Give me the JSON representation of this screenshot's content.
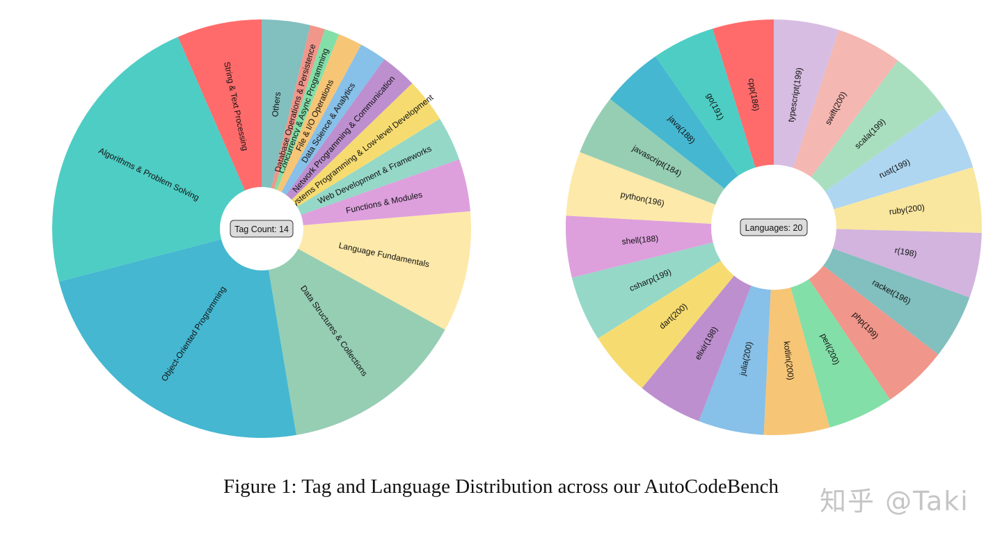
{
  "caption": "Figure 1: Tag and Language Distribution across our AutoCodeBench",
  "watermark": "知乎 @Taki",
  "chart_data": [
    {
      "type": "pie",
      "variant": "donut",
      "center_label": "Tag Count: 14",
      "slices": [
        {
          "label": "Others",
          "value": 3.6,
          "color": "#82BFBF"
        },
        {
          "label": "Database Operations & Persistence",
          "value": 1.1,
          "color": "#F1968A"
        },
        {
          "label": "Concurrency & Async Programming",
          "value": 1.1,
          "color": "#82DFA8"
        },
        {
          "label": "File & I/O Operations",
          "value": 1.8,
          "color": "#F7C576"
        },
        {
          "label": "Data Science & Analytics",
          "value": 2.0,
          "color": "#87C0E8"
        },
        {
          "label": "Network Programming & Communication",
          "value": 2.7,
          "color": "#BD8FCF"
        },
        {
          "label": "Systems Programming & Low-level Development",
          "value": 3.3,
          "color": "#F6DC70"
        },
        {
          "label": "Web Development & Frameworks",
          "value": 3.3,
          "color": "#95D8C8"
        },
        {
          "label": "Functions & Modules",
          "value": 3.9,
          "color": "#DDA0DD"
        },
        {
          "label": "Language Fundamentals",
          "value": 9.0,
          "color": "#FDE9A9"
        },
        {
          "label": "Data Structures & Collections",
          "value": 13.8,
          "color": "#96CEB4"
        },
        {
          "label": "Object-Oriented Programming",
          "value": 22.7,
          "color": "#45B7D1"
        },
        {
          "label": "Algorithms & Problem Solving",
          "value": 21.7,
          "color": "#4ECDC4"
        },
        {
          "label": "String & Text Processing",
          "value": 6.3,
          "color": "#FF6B6B"
        }
      ]
    },
    {
      "type": "pie",
      "variant": "donut",
      "center_label": "Languages: 20",
      "slices": [
        {
          "label": "typescript(199)",
          "value": 199,
          "color": "#D7BDE2"
        },
        {
          "label": "swift(200)",
          "value": 200,
          "color": "#F5B7B1"
        },
        {
          "label": "scala(199)",
          "value": 199,
          "color": "#A9DFBF"
        },
        {
          "label": "rust(199)",
          "value": 199,
          "color": "#AED6F1"
        },
        {
          "label": "ruby(200)",
          "value": 200,
          "color": "#F9E79F"
        },
        {
          "label": "r(198)",
          "value": 198,
          "color": "#D2B4DE"
        },
        {
          "label": "racket(196)",
          "value": 196,
          "color": "#82BFBF"
        },
        {
          "label": "php(199)",
          "value": 199,
          "color": "#F1968A"
        },
        {
          "label": "perl(200)",
          "value": 200,
          "color": "#82DFA8"
        },
        {
          "label": "kotlin(200)",
          "value": 200,
          "color": "#F7C576"
        },
        {
          "label": "julia(200)",
          "value": 200,
          "color": "#87C0E8"
        },
        {
          "label": "elixir(198)",
          "value": 198,
          "color": "#BD8FCF"
        },
        {
          "label": "dart(200)",
          "value": 200,
          "color": "#F6DC70"
        },
        {
          "label": "csharp(199)",
          "value": 199,
          "color": "#95D8C8"
        },
        {
          "label": "shell(188)",
          "value": 188,
          "color": "#DDA0DD"
        },
        {
          "label": "python(196)",
          "value": 196,
          "color": "#FDE9A9"
        },
        {
          "label": "javascript(184)",
          "value": 184,
          "color": "#96CEB4"
        },
        {
          "label": "java(188)",
          "value": 188,
          "color": "#45B7D1"
        },
        {
          "label": "go(191)",
          "value": 191,
          "color": "#4ECDC4"
        },
        {
          "label": "cpp(186)",
          "value": 186,
          "color": "#FF6B6B"
        }
      ]
    }
  ]
}
